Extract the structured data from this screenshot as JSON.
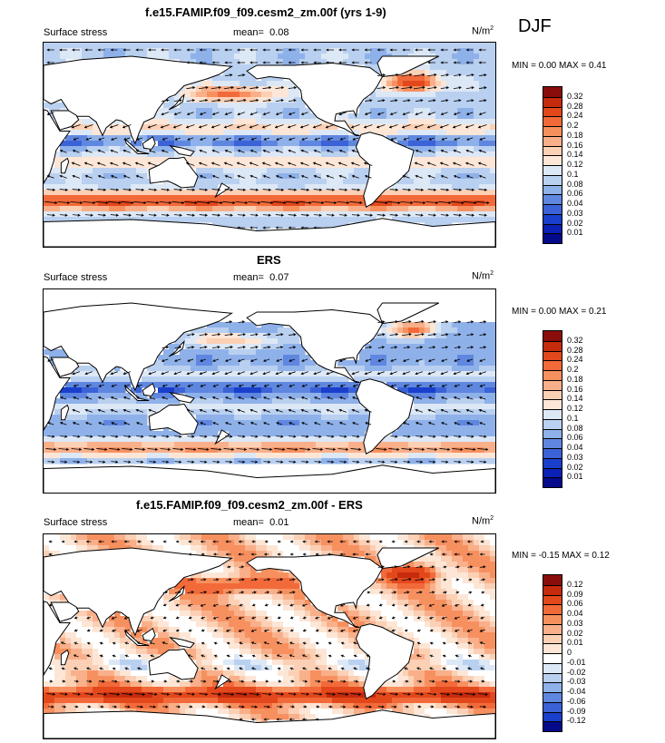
{
  "season": "DJF",
  "panels": [
    {
      "title": "f.e15.FAMIP.f09_f09.cesm2_zm.00f (yrs 1-9)",
      "variable": "Surface stress",
      "mean_label": "mean=",
      "mean_value": "0.08",
      "units": "N/m",
      "units_sup": "2",
      "minmax": "MIN =  0.00 MAX =  0.41",
      "colorbar_labels": [
        "0.32",
        "0.28",
        "0.24",
        "0.2",
        "0.18",
        "0.16",
        "0.14",
        "0.12",
        "0.1",
        "0.08",
        "0.06",
        "0.04",
        "0.03",
        "0.02",
        "0.01"
      ],
      "colorbar_colors": [
        "#8b0d0b",
        "#c62b0d",
        "#e3481c",
        "#f26a3a",
        "#f7905f",
        "#f9b08a",
        "#fbd0b5",
        "#fde6d6",
        "#dde8f6",
        "#b9d0f0",
        "#8fb1ea",
        "#5f87e0",
        "#3b62d6",
        "#1a3fcc",
        "#0b20b4",
        "#050a8a"
      ]
    },
    {
      "title": "ERS",
      "variable": "Surface stress",
      "mean_label": "mean=",
      "mean_value": "0.07",
      "units": "N/m",
      "units_sup": "2",
      "minmax": "MIN =  0.00 MAX =  0.21",
      "colorbar_labels": [
        "0.32",
        "0.28",
        "0.24",
        "0.2",
        "0.18",
        "0.16",
        "0.14",
        "0.12",
        "0.1",
        "0.08",
        "0.06",
        "0.04",
        "0.03",
        "0.02",
        "0.01"
      ],
      "colorbar_colors": [
        "#8b0d0b",
        "#c62b0d",
        "#e3481c",
        "#f26a3a",
        "#f7905f",
        "#f9b08a",
        "#fbd0b5",
        "#fde6d6",
        "#dde8f6",
        "#b9d0f0",
        "#8fb1ea",
        "#5f87e0",
        "#3b62d6",
        "#1a3fcc",
        "#0b20b4",
        "#050a8a"
      ]
    },
    {
      "title": "f.e15.FAMIP.f09_f09.cesm2_zm.00f - ERS",
      "variable": "Surface stress",
      "mean_label": "mean=",
      "mean_value": "0.01",
      "units": "N/m",
      "units_sup": "2",
      "minmax": "MIN = -0.15 MAX =  0.12",
      "colorbar_labels": [
        "0.12",
        "0.09",
        "0.06",
        "0.04",
        "0.03",
        "0.02",
        "0.01",
        "0",
        "-0.01",
        "-0.02",
        "-0.03",
        "-0.04",
        "-0.06",
        "-0.09",
        "-0.12"
      ],
      "colorbar_colors": [
        "#8b0d0b",
        "#c62b0d",
        "#e3481c",
        "#f26a3a",
        "#f7905f",
        "#f9b08a",
        "#fbd0b5",
        "#fde6d6",
        "#ffffff",
        "#dde8f6",
        "#b9d0f0",
        "#8fb1ea",
        "#5f87e0",
        "#3b62d6",
        "#1a3fcc",
        "#050a8a"
      ]
    }
  ]
}
